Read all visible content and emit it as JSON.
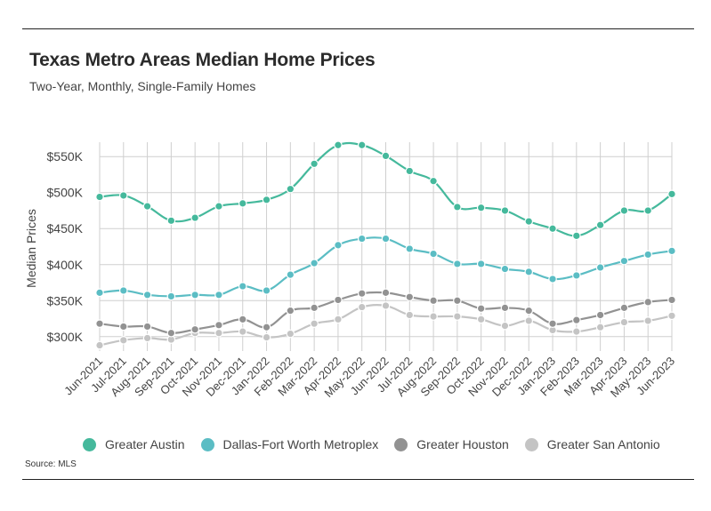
{
  "header": {
    "title": "Texas Metro Areas Median Home Prices",
    "subtitle": "Two-Year, Monthly, Single-Family Homes"
  },
  "footer": {
    "source": "Source: MLS"
  },
  "chart_data": {
    "type": "line",
    "title": "Texas Metro Areas Median Home Prices",
    "subtitle": "Two-Year, Monthly, Single-Family Homes",
    "xlabel": "",
    "ylabel": "Median Prices",
    "ylim": [
      280000,
      570000
    ],
    "y_ticks": [
      300000,
      350000,
      400000,
      450000,
      500000,
      550000
    ],
    "y_tick_labels": [
      "$300K",
      "$350K",
      "$400K",
      "$450K",
      "$500K",
      "$550K"
    ],
    "grid": true,
    "legend_position": "bottom",
    "categories": [
      "Jun-2021",
      "Jul-2021",
      "Aug-2021",
      "Sep-2021",
      "Oct-2021",
      "Nov-2021",
      "Dec-2021",
      "Jan-2022",
      "Feb-2022",
      "Mar-2022",
      "Apr-2022",
      "May-2022",
      "Jun-2022",
      "Jul-2022",
      "Aug-2022",
      "Sep-2022",
      "Oct-2022",
      "Nov-2022",
      "Dec-2022",
      "Jan-2023",
      "Feb-2023",
      "Mar-2023",
      "Apr-2023",
      "May-2023",
      "Jun-2023"
    ],
    "series": [
      {
        "name": "Greater Austin",
        "color": "#45b99c",
        "values": [
          494000,
          496000,
          481000,
          461000,
          465000,
          481000,
          485000,
          490000,
          505000,
          540000,
          566000,
          566000,
          551000,
          530000,
          516000,
          480000,
          479000,
          475000,
          460000,
          450000,
          440000,
          455000,
          475000,
          475000,
          498000
        ]
      },
      {
        "name": "Dallas-Fort Worth Metroplex",
        "color": "#5bbdc4",
        "values": [
          361000,
          364000,
          358000,
          356000,
          358000,
          358000,
          370000,
          364000,
          386000,
          402000,
          427000,
          436000,
          436000,
          422000,
          415000,
          401000,
          401000,
          394000,
          390000,
          380000,
          385000,
          396000,
          405000,
          414000,
          419000
        ]
      },
      {
        "name": "Greater Houston",
        "color": "#929292",
        "values": [
          318000,
          314000,
          314000,
          305000,
          310000,
          316000,
          324000,
          313000,
          336000,
          340000,
          351000,
          360000,
          361000,
          355000,
          350000,
          350000,
          339000,
          340000,
          336000,
          318000,
          323000,
          330000,
          340000,
          348000,
          351000
        ]
      },
      {
        "name": "Greater San Antonio",
        "color": "#c4c4c4",
        "values": [
          288000,
          295000,
          298000,
          296000,
          305000,
          305000,
          307000,
          299000,
          304000,
          318000,
          324000,
          341000,
          343000,
          330000,
          328000,
          328000,
          324000,
          315000,
          322000,
          309000,
          307000,
          313000,
          320000,
          322000,
          329000
        ]
      }
    ]
  }
}
